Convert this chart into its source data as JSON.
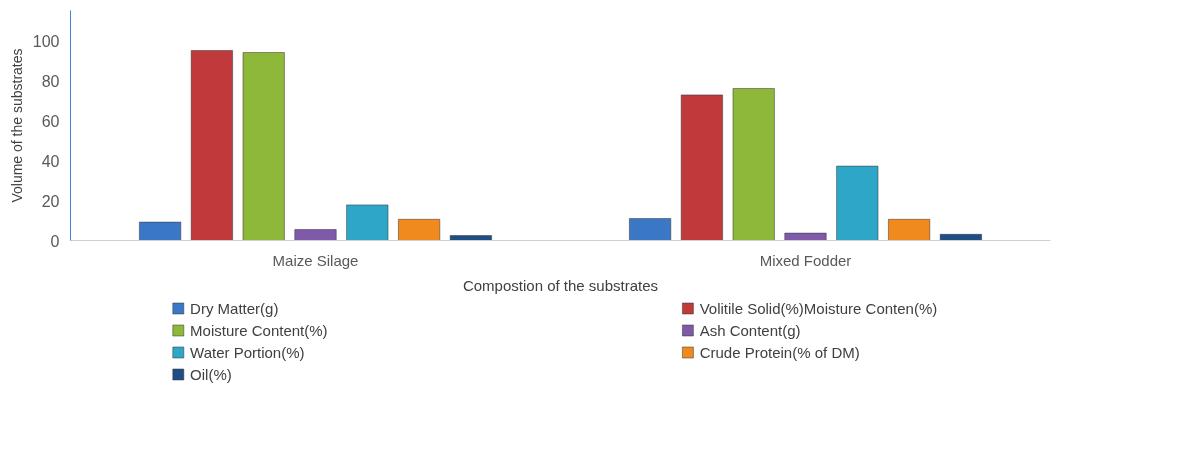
{
  "chart_data": {
    "type": "bar",
    "xlabel": "Compostion of the substrates",
    "ylabel": "Volume of the substrates",
    "categories": [
      "Maize Silage",
      "Mixed Fodder"
    ],
    "series": [
      {
        "name": "Dry Matter(g)",
        "color": "#3a78c6",
        "values": [
          9.2,
          11
        ]
      },
      {
        "name": "Volitile Solid(%)Moisture Conten(%)",
        "color": "#c0393b",
        "values": [
          95,
          72.8
        ]
      },
      {
        "name": "Moisture Content(%)",
        "color": "#8db83a",
        "values": [
          94,
          76
        ]
      },
      {
        "name": "Ash Content(g)",
        "color": "#7e5aa8",
        "values": [
          5.5,
          3.7
        ]
      },
      {
        "name": "Water Portion(%)",
        "color": "#2ea6c8",
        "values": [
          17.8,
          37.2
        ]
      },
      {
        "name": "Crude Protein(% of DM)",
        "color": "#f08a1e",
        "values": [
          10.6,
          10.6
        ]
      },
      {
        "name": "Oil(%)",
        "color": "#1f4e84",
        "values": [
          2.5,
          3.1
        ]
      }
    ],
    "ylim": [
      0,
      115
    ],
    "yticks": [
      0,
      20,
      40,
      60,
      80,
      100
    ],
    "grid": false,
    "legend": "bottom"
  }
}
